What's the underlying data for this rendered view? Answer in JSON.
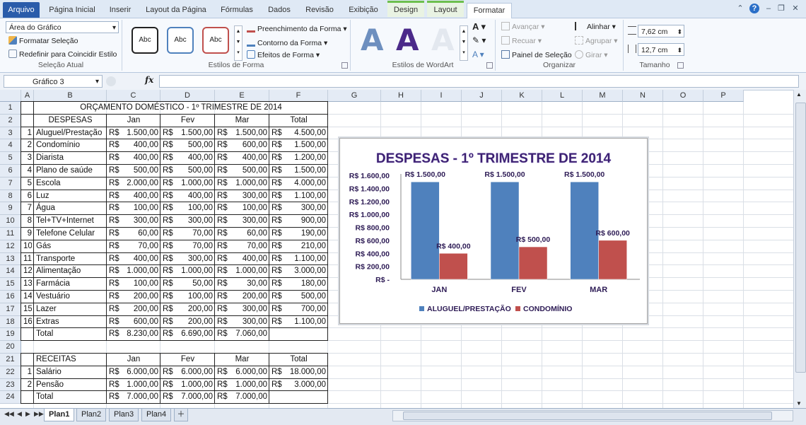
{
  "ribbon": {
    "tabs": [
      {
        "label": "Arquivo",
        "x": 4,
        "w": 52,
        "kind": "file"
      },
      {
        "label": "Página Inicial",
        "x": 60,
        "w": 84
      },
      {
        "label": "Inserir",
        "x": 148,
        "w": 44
      },
      {
        "label": "Layout da Página",
        "x": 196,
        "w": 106
      },
      {
        "label": "Fórmulas",
        "x": 304,
        "w": 62
      },
      {
        "label": "Dados",
        "x": 370,
        "w": 50
      },
      {
        "label": "Revisão",
        "x": 424,
        "w": 56
      },
      {
        "label": "Exibição",
        "x": 484,
        "w": 60
      },
      {
        "label": "Design",
        "x": 548,
        "w": 52,
        "kind": "ctx"
      },
      {
        "label": "Layout",
        "x": 604,
        "w": 52,
        "kind": "ctx"
      },
      {
        "label": "Formatar",
        "x": 660,
        "w": 62,
        "kind": "active"
      }
    ],
    "selecao_atual": {
      "dropdown": "Área do Gráfico",
      "formatar": "Formatar Seleção",
      "redefinir": "Redefinir para Coincidir Estilo",
      "label": "Seleção Atual"
    },
    "estilos_forma": {
      "sample": "Abc",
      "preenchimento": "Preenchimento da Forma",
      "contorno": "Contorno da Forma",
      "efeitos": "Efeitos de Forma",
      "label": "Estilos de Forma"
    },
    "wordart": {
      "letter": "A",
      "label": "Estilos de WordArt"
    },
    "organizar": {
      "avancar": "Avançar",
      "recuar": "Recuar",
      "painel": "Painel de Seleção",
      "alinhar": "Alinhar",
      "agrupar": "Agrupar",
      "girar": "Girar",
      "label": "Organizar"
    },
    "tamanho": {
      "altura": "7,62 cm",
      "largura": "12,7 cm",
      "label": "Tamanho"
    }
  },
  "formula_bar": {
    "namebox": "Gráfico 3",
    "fx": "fx",
    "value": ""
  },
  "columns": [
    "A",
    "B",
    "C",
    "D",
    "E",
    "F",
    "G",
    "H",
    "I",
    "J",
    "K",
    "L",
    "M",
    "N",
    "O",
    "P"
  ],
  "rows": [
    "1",
    "2",
    "3",
    "4",
    "5",
    "6",
    "7",
    "8",
    "9",
    "10",
    "11",
    "12",
    "13",
    "14",
    "15",
    "16",
    "17",
    "18",
    "19",
    "20",
    "21",
    "22",
    "23",
    "24"
  ],
  "sheet": {
    "title": "ORÇAMENTO DOMÉSTICO - 1º TRIMESTRE DE 2014",
    "despesas_header": [
      "DESPESAS",
      "Jan",
      "Fev",
      "Mar",
      "Total"
    ],
    "despesas": [
      {
        "n": "1",
        "item": "Aluguel/Prestação",
        "jan": "1.500,00",
        "fev": "1.500,00",
        "mar": "1.500,00",
        "total": "4.500,00"
      },
      {
        "n": "2",
        "item": "Condomínio",
        "jan": "400,00",
        "fev": "500,00",
        "mar": "600,00",
        "total": "1.500,00"
      },
      {
        "n": "3",
        "item": "Diarista",
        "jan": "400,00",
        "fev": "400,00",
        "mar": "400,00",
        "total": "1.200,00"
      },
      {
        "n": "4",
        "item": "Plano de saúde",
        "jan": "500,00",
        "fev": "500,00",
        "mar": "500,00",
        "total": "1.500,00"
      },
      {
        "n": "5",
        "item": "Escola",
        "jan": "2.000,00",
        "fev": "1.000,00",
        "mar": "1.000,00",
        "total": "4.000,00"
      },
      {
        "n": "6",
        "item": "Luz",
        "jan": "400,00",
        "fev": "400,00",
        "mar": "300,00",
        "total": "1.100,00"
      },
      {
        "n": "7",
        "item": "Água",
        "jan": "100,00",
        "fev": "100,00",
        "mar": "100,00",
        "total": "300,00"
      },
      {
        "n": "8",
        "item": "Tel+TV+Internet",
        "jan": "300,00",
        "fev": "300,00",
        "mar": "300,00",
        "total": "900,00"
      },
      {
        "n": "9",
        "item": "Telefone Celular",
        "jan": "60,00",
        "fev": "70,00",
        "mar": "60,00",
        "total": "190,00"
      },
      {
        "n": "10",
        "item": "Gás",
        "jan": "70,00",
        "fev": "70,00",
        "mar": "70,00",
        "total": "210,00"
      },
      {
        "n": "11",
        "item": "Transporte",
        "jan": "400,00",
        "fev": "300,00",
        "mar": "400,00",
        "total": "1.100,00"
      },
      {
        "n": "12",
        "item": "Alimentação",
        "jan": "1.000,00",
        "fev": "1.000,00",
        "mar": "1.000,00",
        "total": "3.000,00"
      },
      {
        "n": "13",
        "item": "Farmácia",
        "jan": "100,00",
        "fev": "50,00",
        "mar": "30,00",
        "total": "180,00"
      },
      {
        "n": "14",
        "item": "Vestuário",
        "jan": "200,00",
        "fev": "100,00",
        "mar": "200,00",
        "total": "500,00"
      },
      {
        "n": "15",
        "item": "Lazer",
        "jan": "200,00",
        "fev": "200,00",
        "mar": "300,00",
        "total": "700,00"
      },
      {
        "n": "16",
        "item": "Extras",
        "jan": "600,00",
        "fev": "200,00",
        "mar": "300,00",
        "total": "1.100,00"
      }
    ],
    "despesas_total": {
      "item": "Total",
      "jan": "8.230,00",
      "fev": "6.690,00",
      "mar": "7.060,00",
      "total": ""
    },
    "receitas_header": [
      "RECEITAS",
      "Jan",
      "Fev",
      "Mar",
      "Total"
    ],
    "receitas": [
      {
        "n": "1",
        "item": "Salário",
        "jan": "6.000,00",
        "fev": "6.000,00",
        "mar": "6.000,00",
        "total": "18.000,00"
      },
      {
        "n": "2",
        "item": "Pensão",
        "jan": "1.000,00",
        "fev": "1.000,00",
        "mar": "1.000,00",
        "total": "3.000,00"
      }
    ],
    "receitas_total": {
      "item": "Total",
      "jan": "7.000,00",
      "fev": "7.000,00",
      "mar": "7.000,00",
      "total": ""
    },
    "currency": "R$"
  },
  "chart_data": {
    "type": "bar",
    "title": "DESPESAS - 1º TRIMESTRE DE 2014",
    "categories": [
      "JAN",
      "FEV",
      "MAR"
    ],
    "series": [
      {
        "name": "ALUGUEL/PRESTAÇÃO",
        "values": [
          1500,
          1500,
          1500
        ],
        "labels": [
          "R$ 1.500,00",
          "R$ 1.500,00",
          "R$ 1.500,00"
        ],
        "color": "#4f81bd"
      },
      {
        "name": "CONDOMÍNIO",
        "values": [
          400,
          500,
          600
        ],
        "labels": [
          "R$ 400,00",
          "R$ 500,00",
          "R$ 600,00"
        ],
        "color": "#c0504d"
      }
    ],
    "yticks": [
      "R$ -",
      "R$ 200,00",
      "R$ 400,00",
      "R$ 600,00",
      "R$ 800,00",
      "R$ 1.000,00",
      "R$ 1.200,00",
      "R$ 1.400,00",
      "R$ 1.600,00"
    ],
    "ylim": [
      0,
      1600
    ],
    "legend": "bottom",
    "title_color": "#3b1f6e"
  },
  "sheet_tabs": [
    "Plan1",
    "Plan2",
    "Plan3",
    "Plan4"
  ],
  "active_sheet": "Plan1"
}
